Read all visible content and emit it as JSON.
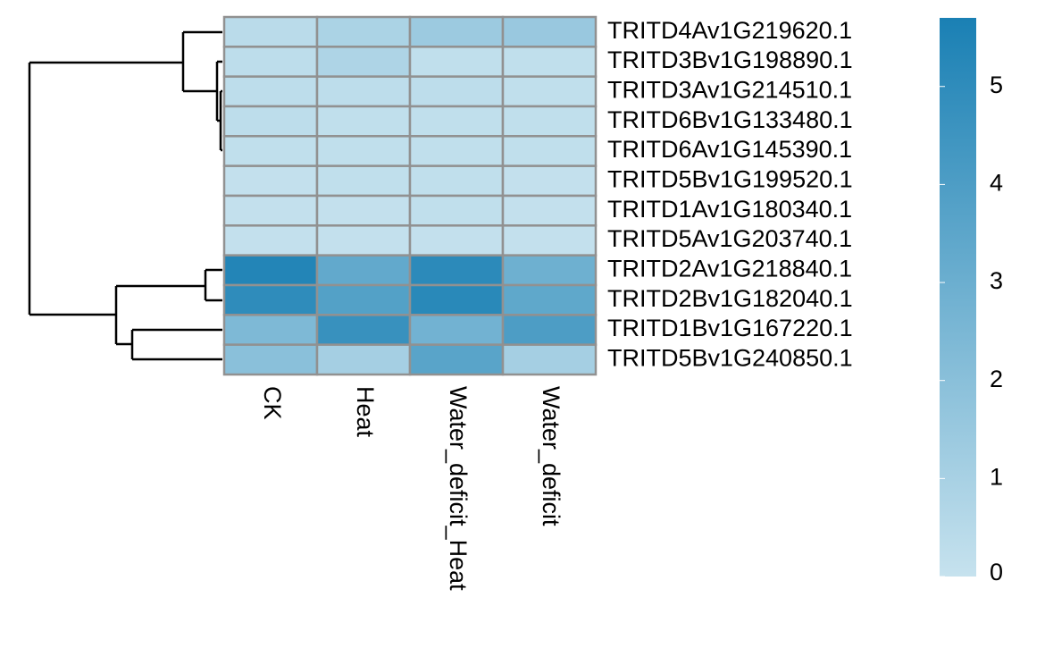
{
  "chart_data": {
    "type": "heatmap",
    "columns": [
      "CK",
      "Heat",
      "Water_deficit_Heat",
      "Water_deficit"
    ],
    "rows": [
      "TRITD4Av1G219620.1",
      "TRITD3Bv1G198890.1",
      "TRITD3Av1G214510.1",
      "TRITD6Bv1G133480.1",
      "TRITD6Av1G145390.1",
      "TRITD5Bv1G199520.1",
      "TRITD1Av1G180340.1",
      "TRITD5Av1G203740.1",
      "TRITD2Av1G218840.1",
      "TRITD2Bv1G182040.1",
      "TRITD1Bv1G167220.1",
      "TRITD5Bv1G240850.1"
    ],
    "values": [
      [
        0.4,
        0.9,
        1.4,
        1.5
      ],
      [
        0.3,
        0.8,
        0.2,
        0.2
      ],
      [
        0.3,
        0.3,
        0.3,
        0.2
      ],
      [
        0.3,
        0.2,
        0.2,
        0.2
      ],
      [
        0.2,
        0.2,
        0.2,
        0.2
      ],
      [
        0.1,
        0.2,
        0.2,
        0.1
      ],
      [
        0.1,
        0.1,
        0.2,
        0.1
      ],
      [
        0.1,
        0.1,
        0.1,
        0.1
      ],
      [
        5.4,
        3.3,
        5.1,
        2.9
      ],
      [
        5.0,
        3.8,
        5.2,
        3.4
      ],
      [
        2.4,
        4.7,
        2.8,
        4.0
      ],
      [
        2.0,
        1.1,
        3.6,
        1.1
      ]
    ],
    "colors": [
      "#c6e2ee",
      "#1a80b4"
    ],
    "ylim": [
      0,
      5.7
    ],
    "yticks": [
      0,
      1,
      2,
      3,
      4,
      5
    ]
  }
}
